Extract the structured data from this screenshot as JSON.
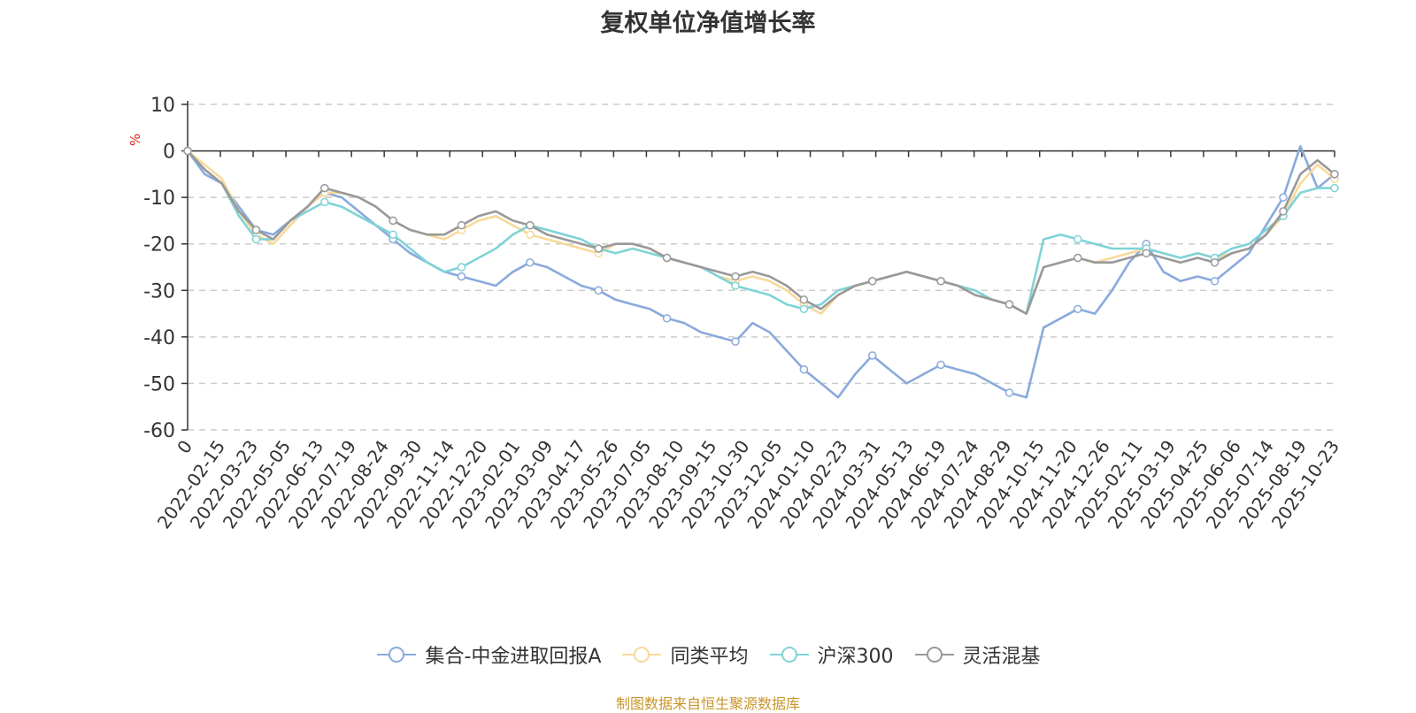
{
  "chart_data": {
    "type": "line",
    "title": "复权单位净值增长率",
    "ylabel": "%",
    "ylim": [
      -60,
      10
    ],
    "yticks": [
      10,
      0,
      -10,
      -20,
      -30,
      -40,
      -50,
      -60
    ],
    "grid": true,
    "legend_position": "bottom",
    "x_start_label": "0",
    "x_tick_labels": [
      "2022-02-15",
      "2022-03-23",
      "2022-05-05",
      "2022-06-13",
      "2022-07-19",
      "2022-08-24",
      "2022-09-30",
      "2022-11-14",
      "2022-12-20",
      "2023-02-01",
      "2023-03-09",
      "2023-04-17",
      "2023-05-26",
      "2023-07-05",
      "2023-08-10",
      "2023-09-15",
      "2023-10-30",
      "2023-12-05",
      "2024-01-10",
      "2024-02-23",
      "2024-03-31",
      "2024-05-13",
      "2024-06-19",
      "2024-07-24",
      "2024-08-29",
      "2024-10-15",
      "2024-11-20",
      "2024-12-26",
      "2025-02-11",
      "2025-03-19",
      "2025-04-25",
      "2025-06-06",
      "2025-07-14",
      "2025-08-19",
      "2025-10-23"
    ],
    "series": [
      {
        "name": "集合-中金进取回报A",
        "color": "#8aaadc",
        "values": [
          0,
          -5,
          -7,
          -12,
          -17,
          -18,
          -15,
          -12,
          -9,
          -10,
          -13,
          -16,
          -19,
          -22,
          -24,
          -26,
          -27,
          -28,
          -29,
          -26,
          -24,
          -25,
          -27,
          -29,
          -30,
          -32,
          -33,
          -34,
          -36,
          -37,
          -39,
          -40,
          -41,
          -37,
          -39,
          -43,
          -47,
          -50,
          -53,
          -48,
          -44,
          -47,
          -50,
          -48,
          -46,
          -47,
          -48,
          -50,
          -52,
          -53,
          -38,
          -36,
          -34,
          -35,
          -30,
          -24,
          -20,
          -26,
          -28,
          -27,
          -28,
          -25,
          -22,
          -16,
          -10,
          1,
          -8,
          -5
        ]
      },
      {
        "name": "同类平均",
        "color": "#f9d99a",
        "values": [
          0,
          -3,
          -6,
          -13,
          -18,
          -20,
          -16,
          -12,
          -9,
          -9,
          -10,
          -12,
          -15,
          -17,
          -18,
          -19,
          -17,
          -15,
          -14,
          -16,
          -18,
          -19,
          -20,
          -21,
          -22,
          -20,
          -20,
          -21,
          -23,
          -24,
          -25,
          -27,
          -28,
          -27,
          -28,
          -30,
          -33,
          -35,
          -31,
          -29,
          -28,
          -27,
          -26,
          -27,
          -28,
          -29,
          -30,
          -32,
          -33,
          -35,
          -25,
          -24,
          -23,
          -24,
          -23,
          -22,
          -21,
          -22,
          -23,
          -22,
          -23,
          -22,
          -21,
          -18,
          -14,
          -7,
          -3,
          -6
        ]
      },
      {
        "name": "沪深300",
        "color": "#7fd3d7",
        "values": [
          0,
          -4,
          -7,
          -14,
          -19,
          -19,
          -15,
          -13,
          -11,
          -12,
          -14,
          -16,
          -18,
          -21,
          -24,
          -26,
          -25,
          -23,
          -21,
          -18,
          -16,
          -17,
          -18,
          -19,
          -21,
          -22,
          -21,
          -22,
          -23,
          -24,
          -25,
          -27,
          -29,
          -30,
          -31,
          -33,
          -34,
          -33,
          -30,
          -29,
          -28,
          -27,
          -26,
          -27,
          -28,
          -29,
          -30,
          -32,
          -33,
          -35,
          -19,
          -18,
          -19,
          -20,
          -21,
          -21,
          -21,
          -22,
          -23,
          -22,
          -23,
          -21,
          -20,
          -17,
          -14,
          -9,
          -8,
          -8
        ]
      },
      {
        "name": "灵活混基",
        "color": "#999999",
        "values": [
          0,
          -4,
          -7,
          -13,
          -17,
          -19,
          -15,
          -12,
          -8,
          -9,
          -10,
          -12,
          -15,
          -17,
          -18,
          -18,
          -16,
          -14,
          -13,
          -15,
          -16,
          -18,
          -19,
          -20,
          -21,
          -20,
          -20,
          -21,
          -23,
          -24,
          -25,
          -26,
          -27,
          -26,
          -27,
          -29,
          -32,
          -34,
          -31,
          -29,
          -28,
          -27,
          -26,
          -27,
          -28,
          -29,
          -31,
          -32,
          -33,
          -35,
          -25,
          -24,
          -23,
          -24,
          -24,
          -23,
          -22,
          -23,
          -24,
          -23,
          -24,
          -22,
          -21,
          -18,
          -13,
          -5,
          -2,
          -5
        ]
      }
    ]
  },
  "legend": {
    "items": [
      {
        "label": "集合-中金进取回报A",
        "color": "#8aaadc"
      },
      {
        "label": "同类平均",
        "color": "#f9d99a"
      },
      {
        "label": "沪深300",
        "color": "#7fd3d7"
      },
      {
        "label": "灵活混基",
        "color": "#999999"
      }
    ]
  },
  "footer": {
    "source": "制图数据来自恒生聚源数据库"
  }
}
